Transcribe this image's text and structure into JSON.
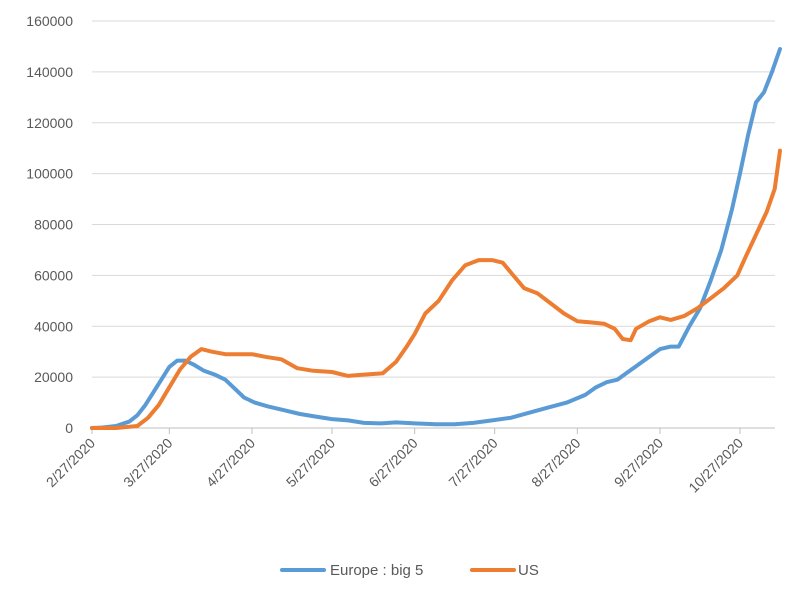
{
  "chart_data": {
    "type": "line",
    "title": "",
    "xlabel": "",
    "ylabel": "",
    "x_ticks": [
      "2/27/2020",
      "3/27/2020",
      "4/27/2020",
      "5/27/2020",
      "6/27/2020",
      "7/27/2020",
      "8/27/2020",
      "9/27/2020",
      "10/27/2020"
    ],
    "y_ticks": [
      "0",
      "20000",
      "40000",
      "60000",
      "80000",
      "100000",
      "120000",
      "140000",
      "160000"
    ],
    "ylim": [
      0,
      160000
    ],
    "grid": true,
    "legend_position": "bottom",
    "series": [
      {
        "name": "Europe : big 5",
        "color": "#5B9BD5",
        "points": [
          [
            "2/27/2020",
            0
          ],
          [
            "3/2/2020",
            200
          ],
          [
            "3/7/2020",
            800
          ],
          [
            "3/12/2020",
            2500
          ],
          [
            "3/15/2020",
            5000
          ],
          [
            "3/18/2020",
            9000
          ],
          [
            "3/21/2020",
            14000
          ],
          [
            "3/24/2020",
            19000
          ],
          [
            "3/27/2020",
            24000
          ],
          [
            "3/30/2020",
            26500
          ],
          [
            "4/2/2020",
            26500
          ],
          [
            "4/5/2020",
            25000
          ],
          [
            "4/9/2020",
            22500
          ],
          [
            "4/13/2020",
            21000
          ],
          [
            "4/17/2020",
            19000
          ],
          [
            "4/21/2020",
            15000
          ],
          [
            "4/24/2020",
            12000
          ],
          [
            "4/28/2020",
            10000
          ],
          [
            "5/3/2020",
            8500
          ],
          [
            "5/9/2020",
            7000
          ],
          [
            "5/15/2020",
            5500
          ],
          [
            "5/21/2020",
            4500
          ],
          [
            "5/27/2020",
            3500
          ],
          [
            "6/2/2020",
            3000
          ],
          [
            "6/8/2020",
            2000
          ],
          [
            "6/14/2020",
            1800
          ],
          [
            "6/20/2020",
            2200
          ],
          [
            "6/27/2020",
            1800
          ],
          [
            "7/5/2020",
            1500
          ],
          [
            "7/12/2020",
            1500
          ],
          [
            "7/19/2020",
            2000
          ],
          [
            "7/26/2020",
            3000
          ],
          [
            "8/2/2020",
            4000
          ],
          [
            "8/9/2020",
            6000
          ],
          [
            "8/16/2020",
            8000
          ],
          [
            "8/23/2020",
            10000
          ],
          [
            "8/30/2020",
            13000
          ],
          [
            "9/3/2020",
            16000
          ],
          [
            "9/7/2020",
            18000
          ],
          [
            "9/11/2020",
            19000
          ],
          [
            "9/15/2020",
            22000
          ],
          [
            "9/19/2020",
            25000
          ],
          [
            "9/23/2020",
            28000
          ],
          [
            "9/27/2020",
            31000
          ],
          [
            "10/1/2020",
            32000
          ],
          [
            "10/4/2020",
            32000
          ],
          [
            "10/8/2020",
            40000
          ],
          [
            "10/12/2020",
            47000
          ],
          [
            "10/16/2020",
            58000
          ],
          [
            "10/20/2020",
            70000
          ],
          [
            "10/24/2020",
            86000
          ],
          [
            "10/27/2020",
            100000
          ],
          [
            "10/30/2020",
            115000
          ],
          [
            "11/2/2020",
            128000
          ],
          [
            "11/5/2020",
            132000
          ],
          [
            "11/8/2020",
            140000
          ],
          [
            "11/11/2020",
            149000
          ]
        ]
      },
      {
        "name": "US",
        "color": "#ED7D31",
        "points": [
          [
            "2/27/2020",
            0
          ],
          [
            "3/7/2020",
            0
          ],
          [
            "3/15/2020",
            800
          ],
          [
            "3/19/2020",
            4000
          ],
          [
            "3/23/2020",
            9000
          ],
          [
            "3/27/2020",
            16000
          ],
          [
            "3/31/2020",
            23000
          ],
          [
            "4/4/2020",
            28000
          ],
          [
            "4/8/2020",
            31000
          ],
          [
            "4/12/2020",
            30000
          ],
          [
            "4/17/2020",
            29000
          ],
          [
            "4/22/2020",
            29000
          ],
          [
            "4/27/2020",
            29000
          ],
          [
            "5/2/2020",
            28000
          ],
          [
            "5/8/2020",
            27000
          ],
          [
            "5/14/2020",
            23500
          ],
          [
            "5/20/2020",
            22500
          ],
          [
            "5/27/2020",
            22000
          ],
          [
            "6/2/2020",
            20500
          ],
          [
            "6/8/2020",
            21000
          ],
          [
            "6/15/2020",
            21500
          ],
          [
            "6/20/2020",
            26000
          ],
          [
            "6/24/2020",
            32000
          ],
          [
            "6/27/2020",
            37000
          ],
          [
            "7/1/2020",
            45000
          ],
          [
            "7/6/2020",
            50000
          ],
          [
            "7/11/2020",
            58000
          ],
          [
            "7/16/2020",
            64000
          ],
          [
            "7/21/2020",
            66000
          ],
          [
            "7/26/2020",
            66000
          ],
          [
            "7/30/2020",
            65000
          ],
          [
            "8/3/2020",
            60000
          ],
          [
            "8/7/2020",
            55000
          ],
          [
            "8/12/2020",
            53000
          ],
          [
            "8/17/2020",
            49000
          ],
          [
            "8/22/2020",
            45000
          ],
          [
            "8/27/2020",
            42000
          ],
          [
            "9/1/2020",
            41500
          ],
          [
            "9/6/2020",
            41000
          ],
          [
            "9/10/2020",
            39000
          ],
          [
            "9/13/2020",
            35000
          ],
          [
            "9/16/2020",
            34500
          ],
          [
            "9/18/2020",
            39000
          ],
          [
            "9/23/2020",
            42000
          ],
          [
            "9/27/2020",
            43500
          ],
          [
            "10/1/2020",
            42500
          ],
          [
            "10/6/2020",
            44000
          ],
          [
            "10/11/2020",
            47000
          ],
          [
            "10/16/2020",
            51000
          ],
          [
            "10/21/2020",
            55000
          ],
          [
            "10/26/2020",
            60000
          ],
          [
            "10/29/2020",
            67000
          ],
          [
            "11/2/2020",
            76000
          ],
          [
            "11/6/2020",
            85000
          ],
          [
            "11/9/2020",
            94000
          ],
          [
            "11/11/2020",
            109000
          ]
        ]
      }
    ]
  }
}
